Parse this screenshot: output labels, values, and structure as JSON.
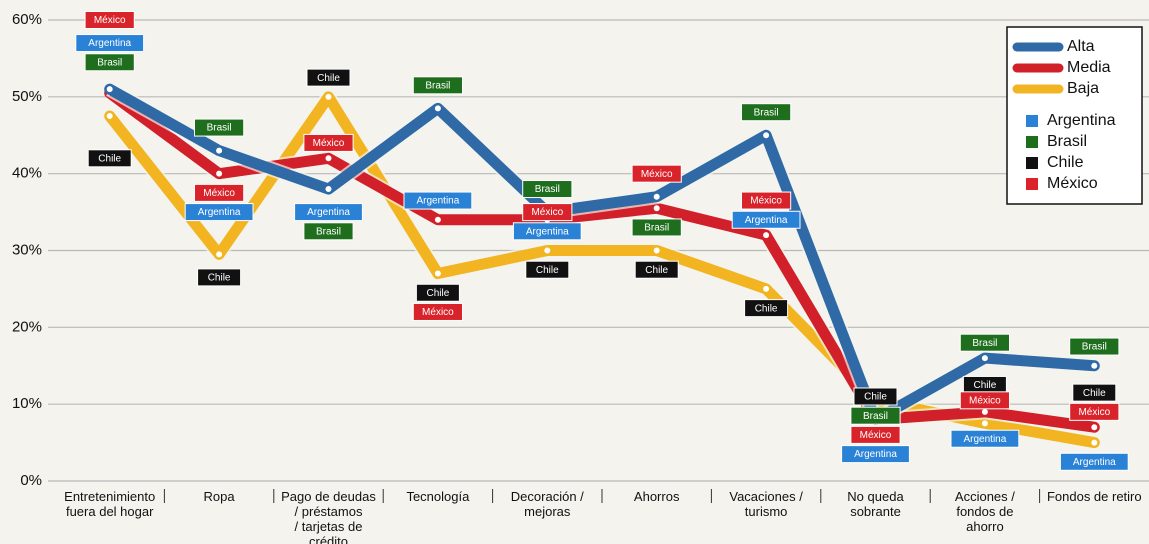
{
  "chart_data": {
    "type": "line",
    "categories": [
      "Entretenimiento\nfuera del hogar",
      "Ropa",
      "Pago de deudas\n/ préstamos\n/ tarjetas de\ncrédito",
      "Tecnología",
      "Decoración /\nmejoras",
      "Ahorros",
      "Vacaciones /\nturismo",
      "No queda\nsobrante",
      "Acciones /\nfondos de\nahorro",
      "Fondos de retiro"
    ],
    "series": [
      {
        "name": "Alta",
        "color": "#2f6aa6",
        "values": [
          51,
          43,
          38,
          48.5,
          35,
          37,
          45,
          8,
          16,
          15
        ]
      },
      {
        "name": "Media",
        "color": "#d2202a",
        "values": [
          50.5,
          40,
          42,
          34,
          34,
          35.5,
          32,
          8,
          9,
          7
        ]
      },
      {
        "name": "Baja",
        "color": "#f2b521",
        "values": [
          47.5,
          29.5,
          50,
          27,
          30,
          30,
          25,
          10.5,
          7.5,
          5
        ]
      }
    ],
    "countries": [
      {
        "name": "Argentina",
        "color": "#2a82d6"
      },
      {
        "name": "Brasil",
        "color": "#1e6e1e"
      },
      {
        "name": "Chile",
        "color": "#111111"
      },
      {
        "name": "México",
        "color": "#d9232a"
      }
    ],
    "annotations": [
      {
        "text": "México",
        "category": 0,
        "y": 60
      },
      {
        "text": "Argentina",
        "category": 0,
        "y": 57
      },
      {
        "text": "Brasil",
        "category": 0,
        "y": 54.5
      },
      {
        "text": "Chile",
        "category": 0,
        "y": 42
      },
      {
        "text": "Brasil",
        "category": 1,
        "y": 46
      },
      {
        "text": "México",
        "category": 1,
        "y": 37.5
      },
      {
        "text": "Argentina",
        "category": 1,
        "y": 35
      },
      {
        "text": "Chile",
        "category": 1,
        "y": 26.5
      },
      {
        "text": "Chile",
        "category": 2,
        "y": 52.5
      },
      {
        "text": "México",
        "category": 2,
        "y": 44
      },
      {
        "text": "Argentina",
        "category": 2,
        "y": 35
      },
      {
        "text": "Brasil",
        "category": 2,
        "y": 32.5
      },
      {
        "text": "Brasil",
        "category": 3,
        "y": 51.5
      },
      {
        "text": "Argentina",
        "category": 3,
        "y": 36.5
      },
      {
        "text": "Chile",
        "category": 3,
        "y": 24.5
      },
      {
        "text": "México",
        "category": 3,
        "y": 22
      },
      {
        "text": "Brasil",
        "category": 4,
        "y": 38
      },
      {
        "text": "México",
        "category": 4,
        "y": 35
      },
      {
        "text": "Argentina",
        "category": 4,
        "y": 32.5
      },
      {
        "text": "Chile",
        "category": 4,
        "y": 27.5
      },
      {
        "text": "México",
        "category": 5,
        "y": 40
      },
      {
        "text": "Brasil",
        "category": 5,
        "y": 33
      },
      {
        "text": "Chile",
        "category": 5,
        "y": 27.5
      },
      {
        "text": "Brasil",
        "category": 6,
        "y": 48
      },
      {
        "text": "México",
        "category": 6,
        "y": 36.5
      },
      {
        "text": "Argentina",
        "category": 6,
        "y": 34
      },
      {
        "text": "Chile",
        "category": 6,
        "y": 22.5
      },
      {
        "text": "Chile",
        "category": 7,
        "y": 11
      },
      {
        "text": "Brasil",
        "category": 7,
        "y": 8.5
      },
      {
        "text": "México",
        "category": 7,
        "y": 6
      },
      {
        "text": "Argentina",
        "category": 7,
        "y": 3.5
      },
      {
        "text": "Brasil",
        "category": 8,
        "y": 18
      },
      {
        "text": "Chile",
        "category": 8,
        "y": 12.5
      },
      {
        "text": "México",
        "category": 8,
        "y": 10.5
      },
      {
        "text": "Argentina",
        "category": 8,
        "y": 5.5
      },
      {
        "text": "Brasil",
        "category": 9,
        "y": 17.5
      },
      {
        "text": "Chile",
        "category": 9,
        "y": 11.5
      },
      {
        "text": "México",
        "category": 9,
        "y": 9
      },
      {
        "text": "Argentina",
        "category": 9,
        "y": 2.5
      }
    ],
    "ylim": [
      0,
      60
    ],
    "yticks": [
      {
        "value": 0,
        "label": "0%"
      },
      {
        "value": 10,
        "label": "10%"
      },
      {
        "value": 20,
        "label": "20%"
      },
      {
        "value": 30,
        "label": "30%"
      },
      {
        "value": 40,
        "label": "40%"
      },
      {
        "value": 50,
        "label": "50%"
      },
      {
        "value": 60,
        "label": "60%"
      }
    ],
    "grid": true,
    "legend": "top-right"
  }
}
